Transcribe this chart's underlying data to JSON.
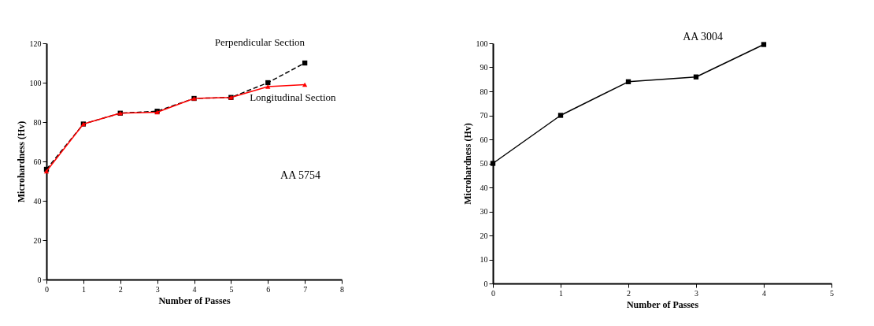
{
  "chart_data": [
    {
      "type": "line",
      "xlabel": "Number of Passes",
      "ylabel": "Microhardness (Hv)",
      "xlim": [
        0,
        8
      ],
      "xticks": [
        0,
        1,
        2,
        3,
        4,
        5,
        6,
        7,
        8
      ],
      "ylim": [
        0,
        120
      ],
      "yticks": [
        0,
        20,
        40,
        60,
        80,
        100,
        120
      ],
      "grid": false,
      "annotations": [
        "AA 5754"
      ],
      "series": [
        {
          "name": "Perpendicular Section",
          "color": "#000000",
          "marker": "square",
          "line_style": "dashed",
          "x": [
            0,
            1,
            2,
            3,
            4,
            5,
            6,
            7
          ],
          "values": [
            56,
            79,
            84.5,
            85.5,
            92,
            92.5,
            100,
            110
          ]
        },
        {
          "name": "Longitudinal Section",
          "color": "#ff0000",
          "marker": "triangle",
          "line_style": "solid",
          "x": [
            0,
            1,
            2,
            3,
            4,
            5,
            6,
            7
          ],
          "values": [
            55,
            79,
            84.5,
            85,
            92,
            92.5,
            98,
            99
          ]
        }
      ]
    },
    {
      "type": "line",
      "xlabel": "Number of Passes",
      "ylabel": "Microhardness (Hv)",
      "xlim": [
        0,
        5
      ],
      "xticks": [
        0,
        1,
        2,
        3,
        4,
        5
      ],
      "ylim": [
        0,
        100
      ],
      "yticks": [
        0,
        10,
        20,
        30,
        40,
        50,
        60,
        70,
        80,
        90,
        100
      ],
      "grid": false,
      "marker": "square",
      "line_style": "solid",
      "annotations": [
        "AA 3004"
      ],
      "series": [
        {
          "color": "#000000",
          "x": [
            0,
            1,
            2,
            3,
            4
          ],
          "values": [
            50,
            70,
            84,
            86,
            99.5
          ]
        }
      ]
    }
  ]
}
